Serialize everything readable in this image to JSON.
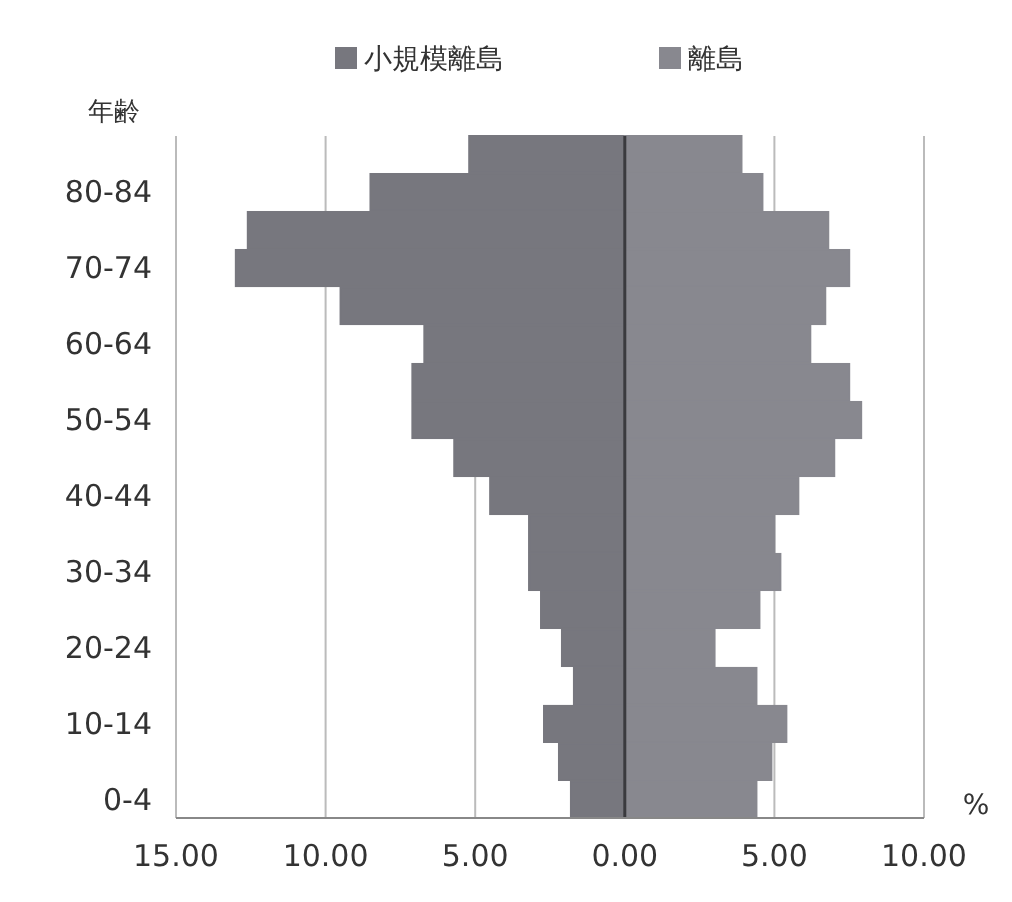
{
  "chart_data": {
    "type": "bar",
    "orientation": "horizontal",
    "stacked": true,
    "xlabel": "%",
    "ylabel": "年齢",
    "categories": [
      null,
      "80-84",
      null,
      "70-74",
      null,
      "60-64",
      null,
      "50-54",
      null,
      "40-44",
      null,
      "30-34",
      null,
      "20-24",
      null,
      "10-14",
      null,
      "0-4"
    ],
    "series": [
      {
        "name": "小規模離島",
        "color": "#77777e",
        "values": [
          -5.2,
          -8.5,
          -12.6,
          -13.0,
          -9.5,
          -6.7,
          -7.1,
          -7.1,
          -5.7,
          -4.5,
          -3.2,
          -3.2,
          -2.8,
          -2.1,
          -1.7,
          -2.7,
          -2.2,
          -1.8
        ]
      },
      {
        "name": "離島",
        "color": "#88888f",
        "values": [
          3.9,
          4.6,
          6.8,
          7.5,
          6.7,
          6.2,
          7.5,
          7.9,
          7.0,
          5.8,
          5.0,
          5.2,
          4.5,
          3.0,
          4.4,
          5.4,
          4.9,
          4.4
        ]
      }
    ],
    "xlim": [
      -15,
      10
    ],
    "xticks": [
      {
        "value": -15,
        "label": "15.00"
      },
      {
        "value": -10,
        "label": "10.00"
      },
      {
        "value": -5,
        "label": "5.00"
      },
      {
        "value": 0,
        "label": "0.00"
      },
      {
        "value": 5,
        "label": "5.00"
      },
      {
        "value": 10,
        "label": "10.00"
      }
    ],
    "grid": "x",
    "legend": "top"
  }
}
